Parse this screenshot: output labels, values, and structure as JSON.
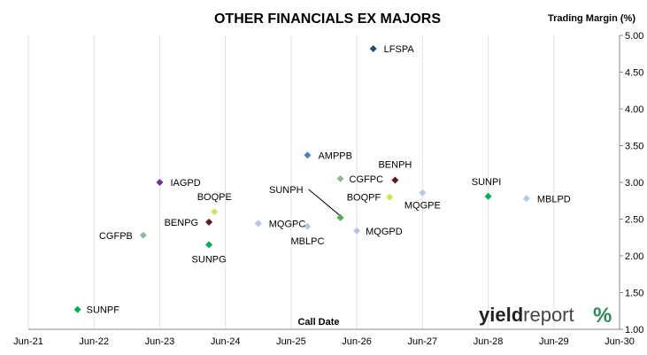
{
  "chart_data": {
    "type": "scatter",
    "title": "OTHER FINANCIALS EX MAJORS",
    "ylabel": "Trading Margin (%)",
    "xlabel": "Call Date",
    "x_ticks": [
      "Jun-21",
      "Jun-22",
      "Jun-23",
      "Jun-24",
      "Jun-25",
      "Jun-26",
      "Jun-27",
      "Jun-28",
      "Jun-29",
      "Jun-30"
    ],
    "y_ticks": [
      "1.00",
      "1.50",
      "2.00",
      "2.50",
      "3.00",
      "3.50",
      "4.00",
      "4.50",
      "5.00"
    ],
    "xlim": [
      "2021-06",
      "2030-06"
    ],
    "ylim": [
      1.0,
      5.0
    ],
    "grid": {
      "x": true,
      "y": false
    },
    "y_axis_side": "right",
    "points": [
      {
        "name": "LFSPA",
        "x": "2026-09",
        "y": 4.82,
        "color": "#1f4e79"
      },
      {
        "name": "AMPPB",
        "x": "2025-09",
        "y": 3.37,
        "color": "#4f81bd"
      },
      {
        "name": "BENPH",
        "x": "2027-01",
        "y": 3.03,
        "color": "#5c1a1a"
      },
      {
        "name": "CGFPC",
        "x": "2026-03",
        "y": 3.05,
        "color": "#8fbc8f"
      },
      {
        "name": "IAGPD",
        "x": "2023-06",
        "y": 3.0,
        "color": "#7030a0"
      },
      {
        "name": "SUNPI",
        "x": "2028-06",
        "y": 2.81,
        "color": "#00b050"
      },
      {
        "name": "MBLPD",
        "x": "2029-01",
        "y": 2.78,
        "color": "#b4c7e7"
      },
      {
        "name": "MQGPE",
        "x": "2027-06",
        "y": 2.86,
        "color": "#b4c7e7"
      },
      {
        "name": "BOQPF",
        "x": "2026-12",
        "y": 2.8,
        "color": "#d4e157"
      },
      {
        "name": "SUNPH",
        "x": "2026-03",
        "y": 2.52,
        "color": "#4caf50"
      },
      {
        "name": "BOQPE",
        "x": "2024-04",
        "y": 2.6,
        "color": "#d4e157"
      },
      {
        "name": "BENPG",
        "x": "2024-03",
        "y": 2.46,
        "color": "#5c1a1a"
      },
      {
        "name": "MQGPC",
        "x": "2024-12",
        "y": 2.44,
        "color": "#b4c7e7"
      },
      {
        "name": "MBLPC",
        "x": "2025-09",
        "y": 2.4,
        "color": "#b4c7e7"
      },
      {
        "name": "MQGPD",
        "x": "2026-06",
        "y": 2.34,
        "color": "#b4c7e7"
      },
      {
        "name": "CGFPB",
        "x": "2023-03",
        "y": 2.28,
        "color": "#8fbc8f"
      },
      {
        "name": "SUNPG",
        "x": "2024-03",
        "y": 2.15,
        "color": "#00b050"
      },
      {
        "name": "SUNPF",
        "x": "2022-03",
        "y": 1.27,
        "color": "#00b050"
      }
    ]
  },
  "logo": {
    "text_bold": "yield",
    "text_light": "report",
    "symbol": "%"
  }
}
